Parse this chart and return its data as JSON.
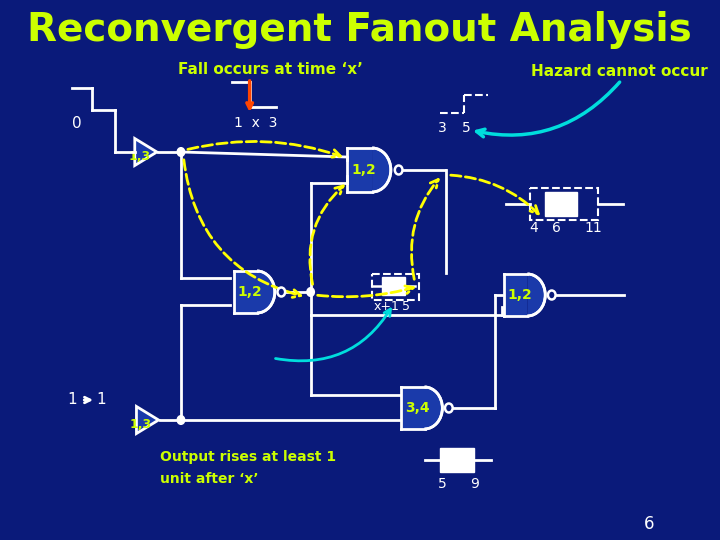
{
  "title": "Reconvergent Fanout Analysis",
  "title_color": "#FFFF00",
  "title_fontsize": 28,
  "bg_color": "#0a1a7a",
  "slide_number": "6",
  "fall_label": "Fall occurs at time ‘x’",
  "hazard_label": "Hazard cannot occur",
  "output_label": "Output rises at least 1\nunit after ‘x’",
  "label_color": "#CCFF00",
  "white": "#FFFFFF",
  "cyan": "#00DDDD",
  "red_orange": "#FF4400",
  "gate_fill": "#1a3aaa",
  "dashed_color": "#FFFF00",
  "bg_dark": "#0a1a7a"
}
